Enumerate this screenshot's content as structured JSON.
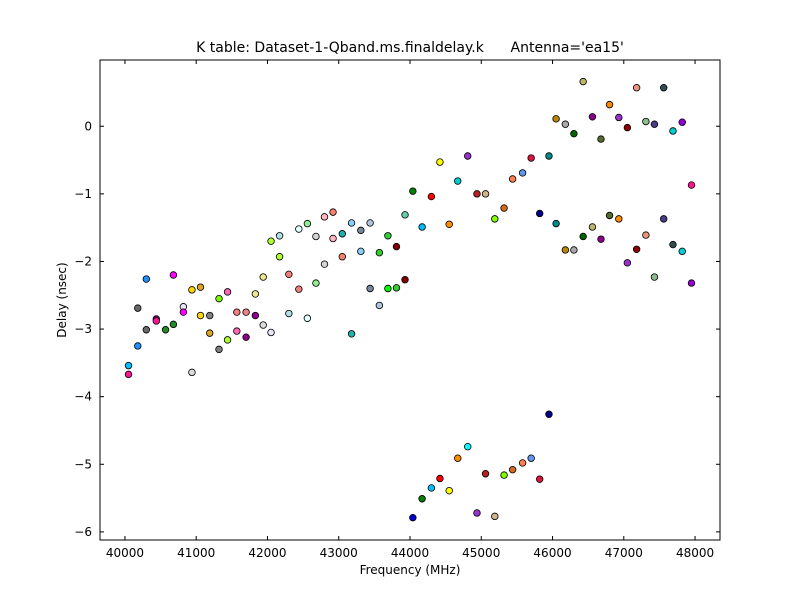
{
  "chart_data": {
    "type": "scatter",
    "title": "K table: Dataset-1-Qband.ms.finaldelay.k      Antenna='ea15'",
    "xlabel": "Frequency (MHz)",
    "ylabel": "Delay (nsec)",
    "xlim": [
      39650,
      48350
    ],
    "ylim": [
      -6.12,
      0.98
    ],
    "xticks": [
      40000,
      41000,
      42000,
      43000,
      44000,
      45000,
      46000,
      47000,
      48000
    ],
    "xtick_labels": [
      "40000",
      "41000",
      "42000",
      "43000",
      "44000",
      "45000",
      "46000",
      "47000",
      "48000"
    ],
    "yticks": [
      -6,
      -5,
      -4,
      -3,
      -2,
      -1,
      0
    ],
    "ytick_labels": [
      "−6",
      "−5",
      "−4",
      "−3",
      "−2",
      "−1",
      "0"
    ],
    "grid": false,
    "legend": "none",
    "marker": "circle",
    "marker_edge_color": "#000000",
    "points": [
      {
        "x": 40050,
        "y": -3.54,
        "color": "#00bfff"
      },
      {
        "x": 40050,
        "y": -3.67,
        "color": "#ff1493"
      },
      {
        "x": 40180,
        "y": -3.25,
        "color": "#1e90ff"
      },
      {
        "x": 40180,
        "y": -2.69,
        "color": "#696969"
      },
      {
        "x": 40300,
        "y": -2.26,
        "color": "#1e90ff"
      },
      {
        "x": 40300,
        "y": -3.01,
        "color": "#696969"
      },
      {
        "x": 40440,
        "y": -2.85,
        "color": "#800080"
      },
      {
        "x": 40440,
        "y": -2.88,
        "color": "#ff1493"
      },
      {
        "x": 40570,
        "y": -3.01,
        "color": "#228b22"
      },
      {
        "x": 40680,
        "y": -2.2,
        "color": "#ff00ff"
      },
      {
        "x": 40680,
        "y": -2.93,
        "color": "#228b22"
      },
      {
        "x": 40820,
        "y": -2.67,
        "color": "#e6e6fa"
      },
      {
        "x": 40820,
        "y": -2.75,
        "color": "#ff00ff"
      },
      {
        "x": 40940,
        "y": -2.42,
        "color": "#ffd700"
      },
      {
        "x": 40940,
        "y": -3.64,
        "color": "#dcdcdc"
      },
      {
        "x": 41060,
        "y": -2.38,
        "color": "#daa520"
      },
      {
        "x": 41060,
        "y": -2.8,
        "color": "#ffd700"
      },
      {
        "x": 41190,
        "y": -3.06,
        "color": "#daa520"
      },
      {
        "x": 41190,
        "y": -2.8,
        "color": "#808080"
      },
      {
        "x": 41320,
        "y": -2.55,
        "color": "#7cfc00"
      },
      {
        "x": 41320,
        "y": -3.3,
        "color": "#808080"
      },
      {
        "x": 41440,
        "y": -2.45,
        "color": "#ff69b4"
      },
      {
        "x": 41440,
        "y": -3.16,
        "color": "#adff2f"
      },
      {
        "x": 41570,
        "y": -2.75,
        "color": "#f08080"
      },
      {
        "x": 41570,
        "y": -3.03,
        "color": "#ff69b4"
      },
      {
        "x": 41700,
        "y": -2.75,
        "color": "#f08080"
      },
      {
        "x": 41700,
        "y": -3.12,
        "color": "#8b008b"
      },
      {
        "x": 41830,
        "y": -2.48,
        "color": "#f0e68c"
      },
      {
        "x": 41830,
        "y": -2.8,
        "color": "#8b008b"
      },
      {
        "x": 41940,
        "y": -2.23,
        "color": "#f0e68c"
      },
      {
        "x": 41940,
        "y": -2.94,
        "color": "#dcdcdc"
      },
      {
        "x": 42050,
        "y": -1.7,
        "color": "#adff2f"
      },
      {
        "x": 42050,
        "y": -3.05,
        "color": "#e6e6fa"
      },
      {
        "x": 42170,
        "y": -1.62,
        "color": "#b0e0e6"
      },
      {
        "x": 42170,
        "y": -1.93,
        "color": "#adff2f"
      },
      {
        "x": 42300,
        "y": -2.19,
        "color": "#f08080"
      },
      {
        "x": 42300,
        "y": -2.77,
        "color": "#b0e0e6"
      },
      {
        "x": 42440,
        "y": -1.52,
        "color": "#e0ffff"
      },
      {
        "x": 42440,
        "y": -2.41,
        "color": "#f08080"
      },
      {
        "x": 42560,
        "y": -1.44,
        "color": "#90ee90"
      },
      {
        "x": 42560,
        "y": -2.84,
        "color": "#e0ffff"
      },
      {
        "x": 42680,
        "y": -1.63,
        "color": "#d3d3d3"
      },
      {
        "x": 42680,
        "y": -2.32,
        "color": "#90ee90"
      },
      {
        "x": 42800,
        "y": -1.34,
        "color": "#ffb6c1"
      },
      {
        "x": 42800,
        "y": -2.04,
        "color": "#d3d3d3"
      },
      {
        "x": 42920,
        "y": -1.27,
        "color": "#fa8072"
      },
      {
        "x": 42920,
        "y": -1.66,
        "color": "#ffb6c1"
      },
      {
        "x": 43050,
        "y": -1.59,
        "color": "#20b2aa"
      },
      {
        "x": 43050,
        "y": -1.93,
        "color": "#fa8072"
      },
      {
        "x": 43180,
        "y": -1.43,
        "color": "#87cefa"
      },
      {
        "x": 43180,
        "y": -3.07,
        "color": "#20b2aa"
      },
      {
        "x": 43310,
        "y": -1.54,
        "color": "#778899"
      },
      {
        "x": 43310,
        "y": -1.85,
        "color": "#87cefa"
      },
      {
        "x": 43440,
        "y": -1.43,
        "color": "#b0c4de"
      },
      {
        "x": 43440,
        "y": -2.4,
        "color": "#778899"
      },
      {
        "x": 43570,
        "y": -1.87,
        "color": "#32cd32"
      },
      {
        "x": 43570,
        "y": -2.65,
        "color": "#b0c4de"
      },
      {
        "x": 43690,
        "y": -1.62,
        "color": "#32cd32"
      },
      {
        "x": 43690,
        "y": -2.4,
        "color": "#00ff00"
      },
      {
        "x": 43810,
        "y": -1.78,
        "color": "#800000"
      },
      {
        "x": 43810,
        "y": -2.39,
        "color": "#32cd32"
      },
      {
        "x": 43930,
        "y": -1.31,
        "color": "#66cdaa"
      },
      {
        "x": 43930,
        "y": -2.27,
        "color": "#800000"
      },
      {
        "x": 44040,
        "y": -0.96,
        "color": "#008000"
      },
      {
        "x": 44040,
        "y": -5.79,
        "color": "#0000cd"
      },
      {
        "x": 44170,
        "y": -1.49,
        "color": "#00bfff"
      },
      {
        "x": 44170,
        "y": -5.51,
        "color": "#008000"
      },
      {
        "x": 44300,
        "y": -1.04,
        "color": "#ff0000"
      },
      {
        "x": 44300,
        "y": -5.35,
        "color": "#00bfff"
      },
      {
        "x": 44420,
        "y": -0.53,
        "color": "#ffff00"
      },
      {
        "x": 44420,
        "y": -5.21,
        "color": "#ff0000"
      },
      {
        "x": 44550,
        "y": -1.45,
        "color": "#ff8c00"
      },
      {
        "x": 44550,
        "y": -5.39,
        "color": "#ffff00"
      },
      {
        "x": 44670,
        "y": -0.81,
        "color": "#00ced1"
      },
      {
        "x": 44670,
        "y": -4.91,
        "color": "#ff8c00"
      },
      {
        "x": 44810,
        "y": -0.44,
        "color": "#9932cc"
      },
      {
        "x": 44810,
        "y": -4.74,
        "color": "#00ffff"
      },
      {
        "x": 44940,
        "y": -1.0,
        "color": "#b22222"
      },
      {
        "x": 44940,
        "y": -5.72,
        "color": "#9932cc"
      },
      {
        "x": 45060,
        "y": -1.0,
        "color": "#d2b48c"
      },
      {
        "x": 45060,
        "y": -5.14,
        "color": "#b22222"
      },
      {
        "x": 45190,
        "y": -1.37,
        "color": "#7fff00"
      },
      {
        "x": 45190,
        "y": -5.77,
        "color": "#d2b48c"
      },
      {
        "x": 45320,
        "y": -1.21,
        "color": "#d2691e"
      },
      {
        "x": 45320,
        "y": -5.16,
        "color": "#7fff00"
      },
      {
        "x": 45440,
        "y": -0.78,
        "color": "#ff7f50"
      },
      {
        "x": 45440,
        "y": -5.08,
        "color": "#d2691e"
      },
      {
        "x": 45580,
        "y": -0.69,
        "color": "#6495ed"
      },
      {
        "x": 45580,
        "y": -4.98,
        "color": "#ff7f50"
      },
      {
        "x": 45700,
        "y": -0.47,
        "color": "#dc143c"
      },
      {
        "x": 45700,
        "y": -4.91,
        "color": "#6495ed"
      },
      {
        "x": 45820,
        "y": -1.29,
        "color": "#00008b"
      },
      {
        "x": 45820,
        "y": -5.22,
        "color": "#dc143c"
      },
      {
        "x": 45950,
        "y": -0.44,
        "color": "#008b8b"
      },
      {
        "x": 45950,
        "y": -4.26,
        "color": "#00008b"
      },
      {
        "x": 46050,
        "y": 0.11,
        "color": "#b8860b"
      },
      {
        "x": 46050,
        "y": -1.44,
        "color": "#008b8b"
      },
      {
        "x": 46180,
        "y": 0.03,
        "color": "#a9a9a9"
      },
      {
        "x": 46180,
        "y": -1.83,
        "color": "#b8860b"
      },
      {
        "x": 46300,
        "y": -0.11,
        "color": "#006400"
      },
      {
        "x": 46300,
        "y": -1.83,
        "color": "#a9a9a9"
      },
      {
        "x": 46430,
        "y": 0.66,
        "color": "#bdb76b"
      },
      {
        "x": 46430,
        "y": -1.63,
        "color": "#006400"
      },
      {
        "x": 46560,
        "y": 0.14,
        "color": "#8b008b"
      },
      {
        "x": 46560,
        "y": -1.49,
        "color": "#bdb76b"
      },
      {
        "x": 46680,
        "y": -0.19,
        "color": "#556b2f"
      },
      {
        "x": 46680,
        "y": -1.67,
        "color": "#8b008b"
      },
      {
        "x": 46800,
        "y": 0.32,
        "color": "#ff8c00"
      },
      {
        "x": 46800,
        "y": -1.32,
        "color": "#556b2f"
      },
      {
        "x": 46930,
        "y": 0.13,
        "color": "#9932cc"
      },
      {
        "x": 46930,
        "y": -1.37,
        "color": "#ff8c00"
      },
      {
        "x": 47050,
        "y": -0.02,
        "color": "#8b0000"
      },
      {
        "x": 47050,
        "y": -2.02,
        "color": "#9932cc"
      },
      {
        "x": 47180,
        "y": 0.57,
        "color": "#e9967a"
      },
      {
        "x": 47180,
        "y": -1.82,
        "color": "#8b0000"
      },
      {
        "x": 47310,
        "y": 0.07,
        "color": "#8fbc8f"
      },
      {
        "x": 47310,
        "y": -1.61,
        "color": "#e9967a"
      },
      {
        "x": 47430,
        "y": 0.03,
        "color": "#483d8b"
      },
      {
        "x": 47430,
        "y": -2.23,
        "color": "#8fbc8f"
      },
      {
        "x": 47560,
        "y": 0.57,
        "color": "#2f4f4f"
      },
      {
        "x": 47560,
        "y": -1.37,
        "color": "#483d8b"
      },
      {
        "x": 47690,
        "y": -0.07,
        "color": "#00ced1"
      },
      {
        "x": 47690,
        "y": -1.75,
        "color": "#2f4f4f"
      },
      {
        "x": 47820,
        "y": 0.06,
        "color": "#9400d3"
      },
      {
        "x": 47820,
        "y": -1.85,
        "color": "#00ced1"
      },
      {
        "x": 47950,
        "y": -0.87,
        "color": "#ff1493"
      },
      {
        "x": 47950,
        "y": -2.32,
        "color": "#9400d3"
      }
    ]
  }
}
